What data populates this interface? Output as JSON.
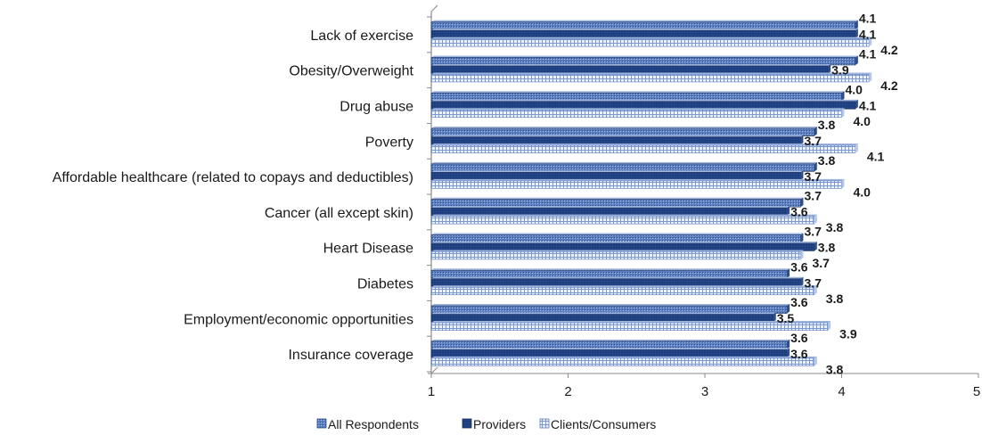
{
  "chart_data": {
    "type": "bar",
    "orientation": "horizontal",
    "title": "",
    "xlabel": "",
    "ylabel": "",
    "xlim": [
      1,
      5
    ],
    "xticks": [
      "1",
      "2",
      "3",
      "4",
      "5"
    ],
    "grid": false,
    "legend_position": "bottom",
    "categories": [
      "Lack of exercise",
      "Obesity/Overweight",
      "Drug abuse",
      "Poverty",
      "Affordable healthcare (related to copays and deductibles)",
      "Cancer (all except skin)",
      "Heart Disease",
      "Diabetes",
      "Employment/economic opportunities",
      "Insurance coverage"
    ],
    "series": [
      {
        "name": "All Respondents",
        "color": "#4a6fb5",
        "values": [
          4.1,
          4.1,
          4.0,
          3.8,
          3.8,
          3.7,
          3.7,
          3.6,
          3.6,
          3.6
        ]
      },
      {
        "name": "Providers",
        "color": "#1f3f7f",
        "values": [
          4.1,
          3.9,
          4.1,
          3.7,
          3.7,
          3.6,
          3.8,
          3.7,
          3.5,
          3.6
        ]
      },
      {
        "name": "Clients/Consumers",
        "color": "#dce6f5",
        "values": [
          4.2,
          4.2,
          4.0,
          4.1,
          4.0,
          3.8,
          3.7,
          3.8,
          3.9,
          3.8
        ]
      }
    ]
  }
}
